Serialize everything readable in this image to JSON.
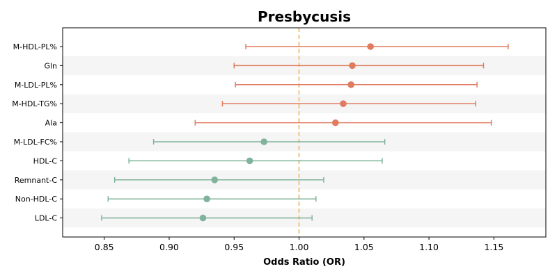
{
  "chart_data": {
    "type": "forest",
    "title": "Presbycusis",
    "xlabel": "Odds Ratio (OR)",
    "ylabel": "",
    "xlim": [
      0.818,
      1.19
    ],
    "xticks": [
      "0.85",
      "0.90",
      "0.95",
      "1.00",
      "1.05",
      "1.10",
      "1.15"
    ],
    "reference_line": 1.0,
    "grid": false,
    "row_shading": "alternating",
    "colors": {
      "positive": "#e07b5f",
      "negative": "#7fb39b",
      "reference": "#f2c57c",
      "shade": "#f5f5f5"
    },
    "rows": [
      {
        "label": "M-HDL-PL%",
        "or": 1.055,
        "lower": 0.959,
        "upper": 1.161
      },
      {
        "label": "Gln",
        "or": 1.041,
        "lower": 0.95,
        "upper": 1.142
      },
      {
        "label": "M-LDL-PL%",
        "or": 1.04,
        "lower": 0.951,
        "upper": 1.137
      },
      {
        "label": "M-HDL-TG%",
        "or": 1.034,
        "lower": 0.941,
        "upper": 1.136
      },
      {
        "label": "Ala",
        "or": 1.028,
        "lower": 0.92,
        "upper": 1.148
      },
      {
        "label": "M-LDL-FC%",
        "or": 0.973,
        "lower": 0.888,
        "upper": 1.066
      },
      {
        "label": "HDL-C",
        "or": 0.962,
        "lower": 0.869,
        "upper": 1.064
      },
      {
        "label": "Remnant-C",
        "or": 0.935,
        "lower": 0.858,
        "upper": 1.019
      },
      {
        "label": "Non-HDL-C",
        "or": 0.929,
        "lower": 0.853,
        "upper": 1.013
      },
      {
        "label": "LDL-C",
        "or": 0.926,
        "lower": 0.848,
        "upper": 1.01
      }
    ]
  }
}
